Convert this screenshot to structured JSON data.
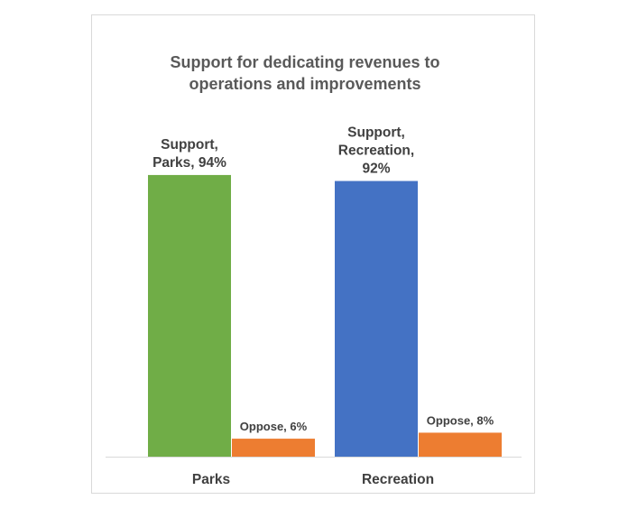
{
  "chart_data": {
    "type": "bar",
    "title_lines": [
      "Support  for dedicating revenues to",
      "operations and improvements"
    ],
    "xlabel": "",
    "ylabel": "",
    "ylim": [
      0,
      100
    ],
    "grid": false,
    "categories": [
      "Parks",
      "Recreation"
    ],
    "bars": [
      {
        "category": "Parks",
        "series": "Support",
        "value": 94,
        "color": "#70ad47",
        "label_lines": [
          "Support,",
          "Parks, 94%"
        ]
      },
      {
        "category": "Parks",
        "series": "Oppose",
        "value": 6,
        "color": "#ed7d31",
        "label_lines": [
          "Oppose, 6%"
        ]
      },
      {
        "category": "Recreation",
        "series": "Support",
        "value": 92,
        "color": "#4472c4",
        "label_lines": [
          "Support,",
          "Recreation,",
          "92%"
        ]
      },
      {
        "category": "Recreation",
        "series": "Oppose",
        "value": 8,
        "color": "#ed7d31",
        "label_lines": [
          "Oppose, 8%"
        ]
      }
    ]
  }
}
